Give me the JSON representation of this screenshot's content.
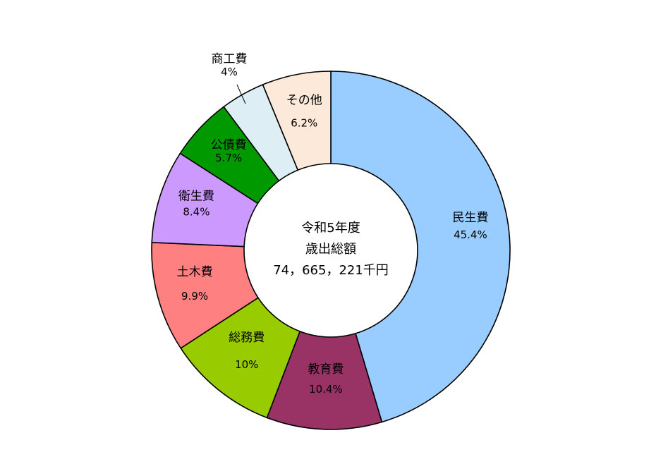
{
  "chart_data": {
    "type": "pie",
    "donut": true,
    "center_text": [
      "令和5年度",
      "歳出総額",
      "74，665，221千円"
    ],
    "slices": [
      {
        "label": "民生費",
        "value": 45.4,
        "display": "45.4%",
        "color": "#99CCFF"
      },
      {
        "label": "教育費",
        "value": 10.4,
        "display": "10.4%",
        "color": "#993366"
      },
      {
        "label": "総務費",
        "value": 10.0,
        "display": "10%",
        "color": "#99CC00"
      },
      {
        "label": "土木費",
        "value": 9.9,
        "display": "9.9%",
        "color": "#FF8080"
      },
      {
        "label": "衛生費",
        "value": 8.4,
        "display": "8.4%",
        "color": "#CC99FF"
      },
      {
        "label": "公債費",
        "value": 5.7,
        "display": "5.7%",
        "color": "#009900"
      },
      {
        "label": "商工費",
        "value": 4.0,
        "display": "4%",
        "color": "#DDEEF5"
      },
      {
        "label": "その他",
        "value": 6.2,
        "display": "6.2%",
        "color": "#FDE9D9"
      }
    ],
    "start": "12 o'clock",
    "direction": "clockwise"
  }
}
